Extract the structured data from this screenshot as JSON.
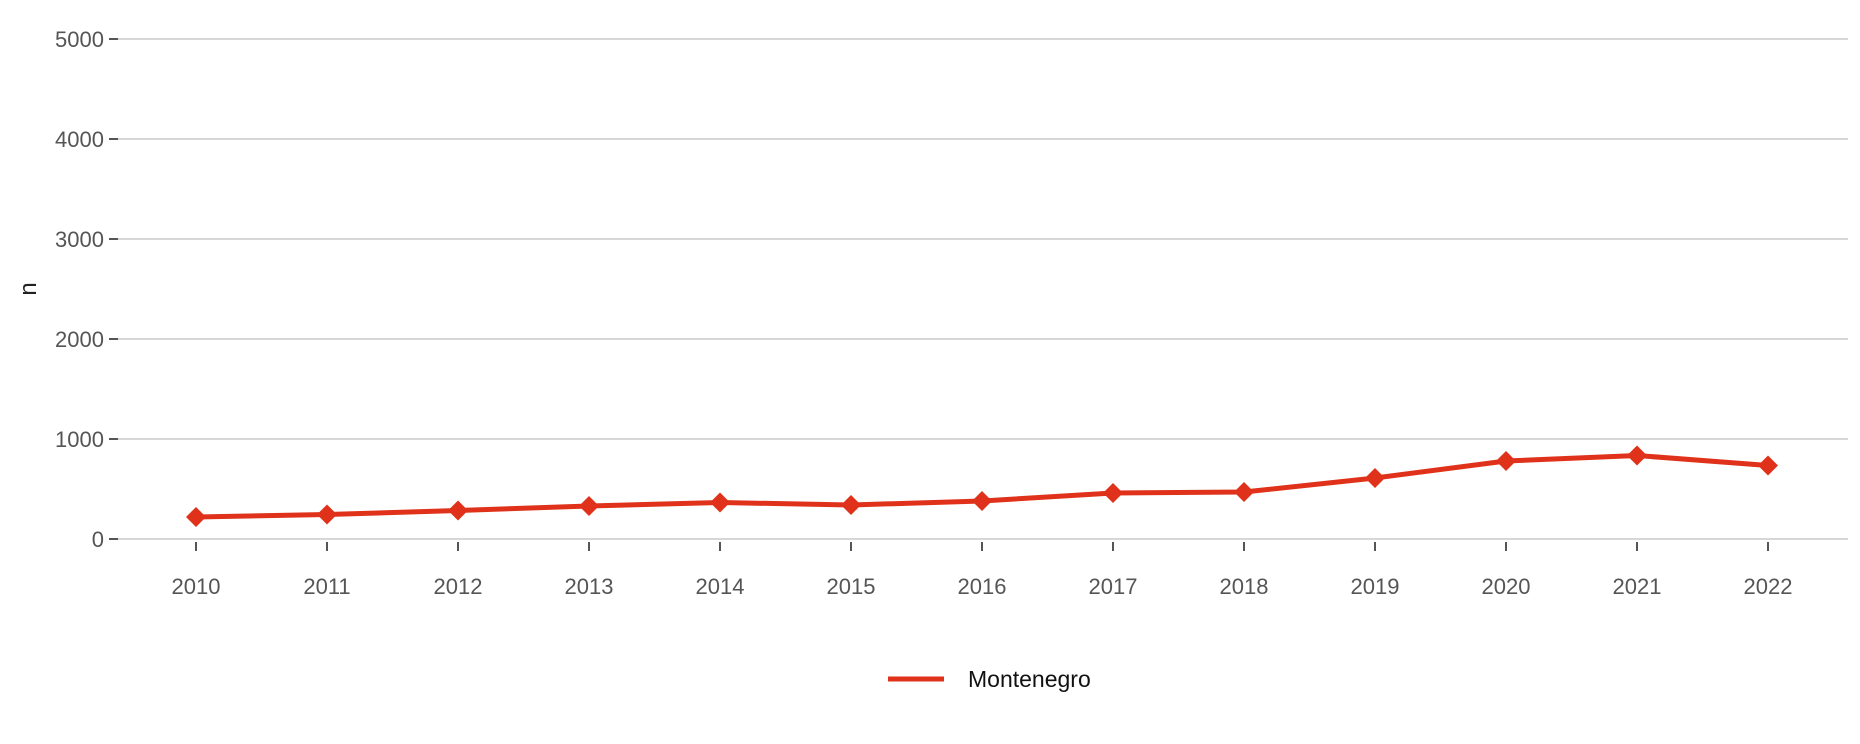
{
  "chart_data": {
    "type": "line",
    "title": "",
    "xlabel": "",
    "ylabel": "n",
    "x": [
      "2010",
      "2011",
      "2012",
      "2013",
      "2014",
      "2015",
      "2016",
      "2017",
      "2018",
      "2019",
      "2020",
      "2021",
      "2022"
    ],
    "ylim": [
      0,
      5000
    ],
    "yticks": [
      "0",
      "1000",
      "2000",
      "3000",
      "4000",
      "5000"
    ],
    "grid": "horizontal",
    "legend_position": "bottom",
    "series": [
      {
        "name": "Montenegro",
        "color": "#e0321a",
        "marker": "diamond",
        "values": [
          220,
          245,
          285,
          330,
          365,
          340,
          380,
          460,
          470,
          610,
          780,
          835,
          735
        ]
      }
    ]
  }
}
